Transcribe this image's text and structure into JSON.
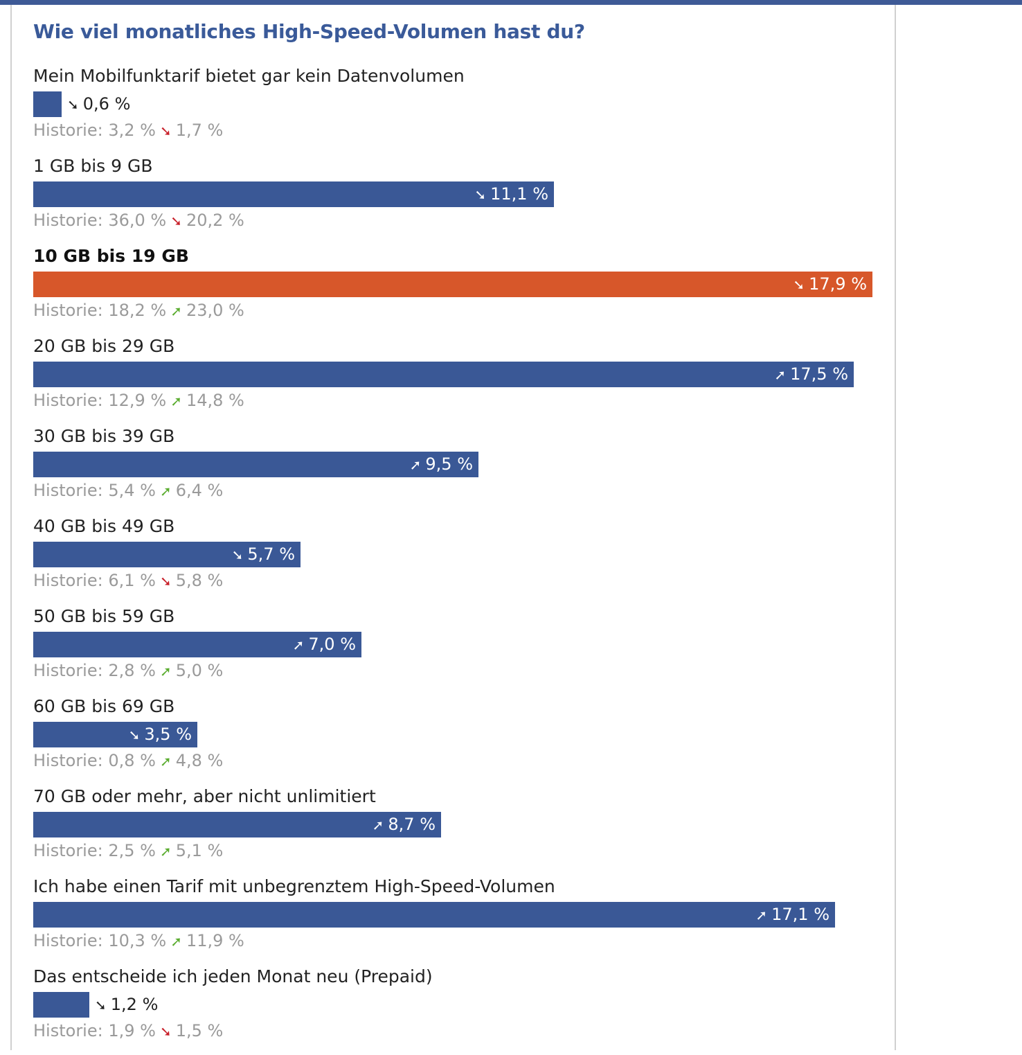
{
  "colors": {
    "bar": "#3a5896",
    "highlight": "#d7572a",
    "down": "#c8202a",
    "up": "#5aac2f"
  },
  "chart_data": {
    "type": "bar",
    "title": "Wie viel monatliches High-Speed-Volumen hast du?",
    "max_value": 17.9,
    "items": [
      {
        "label": "Mein Mobilfunktarif bietet gar kein Datenvolumen",
        "value": 0.6,
        "value_text": "0,6 %",
        "trend": "down",
        "highlight": false,
        "history_prefix": "Historie: ",
        "h1_text": "3,2 %",
        "h2_text": "1,7 %",
        "h_trend": "down"
      },
      {
        "label": "1 GB bis 9 GB",
        "value": 11.1,
        "value_text": "11,1 %",
        "trend": "down",
        "highlight": false,
        "history_prefix": "Historie: ",
        "h1_text": "36,0 %",
        "h2_text": "20,2 %",
        "h_trend": "down"
      },
      {
        "label": "10 GB bis 19 GB",
        "value": 17.9,
        "value_text": "17,9 %",
        "trend": "down",
        "highlight": true,
        "history_prefix": "Historie: ",
        "h1_text": "18,2 %",
        "h2_text": "23,0 %",
        "h_trend": "up"
      },
      {
        "label": "20 GB bis 29 GB",
        "value": 17.5,
        "value_text": "17,5 %",
        "trend": "up",
        "highlight": false,
        "history_prefix": "Historie: ",
        "h1_text": "12,9 %",
        "h2_text": "14,8 %",
        "h_trend": "up"
      },
      {
        "label": "30 GB bis 39 GB",
        "value": 9.5,
        "value_text": "9,5 %",
        "trend": "up",
        "highlight": false,
        "history_prefix": "Historie: ",
        "h1_text": "5,4 %",
        "h2_text": "6,4 %",
        "h_trend": "up"
      },
      {
        "label": "40 GB bis 49 GB",
        "value": 5.7,
        "value_text": "5,7 %",
        "trend": "down",
        "highlight": false,
        "history_prefix": "Historie: ",
        "h1_text": "6,1 %",
        "h2_text": "5,8 %",
        "h_trend": "down"
      },
      {
        "label": "50 GB bis 59 GB",
        "value": 7.0,
        "value_text": "7,0 %",
        "trend": "up",
        "highlight": false,
        "history_prefix": "Historie: ",
        "h1_text": "2,8 %",
        "h2_text": "5,0 %",
        "h_trend": "up"
      },
      {
        "label": "60 GB bis 69 GB",
        "value": 3.5,
        "value_text": "3,5 %",
        "trend": "down",
        "highlight": false,
        "history_prefix": "Historie: ",
        "h1_text": "0,8 %",
        "h2_text": "4,8 %",
        "h_trend": "up"
      },
      {
        "label": "70 GB oder mehr, aber nicht unlimitiert",
        "value": 8.7,
        "value_text": "8,7 %",
        "trend": "up",
        "highlight": false,
        "history_prefix": "Historie: ",
        "h1_text": "2,5 %",
        "h2_text": "5,1 %",
        "h_trend": "up"
      },
      {
        "label": "Ich habe einen Tarif mit unbegrenztem High-Speed-Volumen",
        "value": 17.1,
        "value_text": "17,1 %",
        "trend": "up",
        "highlight": false,
        "history_prefix": "Historie: ",
        "h1_text": "10,3 %",
        "h2_text": "11,9 %",
        "h_trend": "up"
      },
      {
        "label": "Das entscheide ich jeden Monat neu (Prepaid)",
        "value": 1.2,
        "value_text": "1,2 %",
        "trend": "down",
        "highlight": false,
        "history_prefix": "Historie: ",
        "h1_text": "1,9 %",
        "h2_text": "1,5 %",
        "h_trend": "down"
      }
    ]
  }
}
